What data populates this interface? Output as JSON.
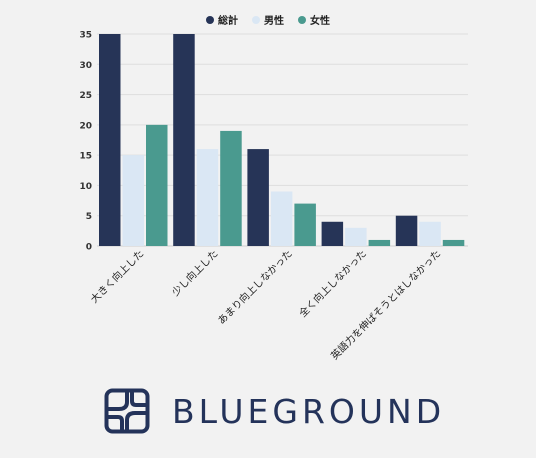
{
  "chart_data": {
    "type": "bar",
    "categories": [
      "大きく向上した",
      "少し向上した",
      "あまり向上しなかった",
      "全く向上しなかった",
      "英語力を伸ばそうとはしなかった"
    ],
    "series": [
      {
        "name": "総計",
        "values": [
          35,
          35,
          16,
          4,
          5
        ],
        "color": "#263457"
      },
      {
        "name": "男性",
        "values": [
          15,
          16,
          9,
          3,
          4
        ],
        "color": "#dae7f4"
      },
      {
        "name": "女性",
        "values": [
          20,
          19,
          7,
          1,
          1
        ],
        "color": "#4a9a8f"
      }
    ],
    "ylim": [
      0,
      35
    ],
    "yticks": [
      0,
      5,
      10,
      15,
      20,
      25,
      30,
      35
    ],
    "grid": true,
    "legend_position": "top-center"
  },
  "brand": {
    "name": "BLUEGROUND",
    "color": "#24335a"
  }
}
